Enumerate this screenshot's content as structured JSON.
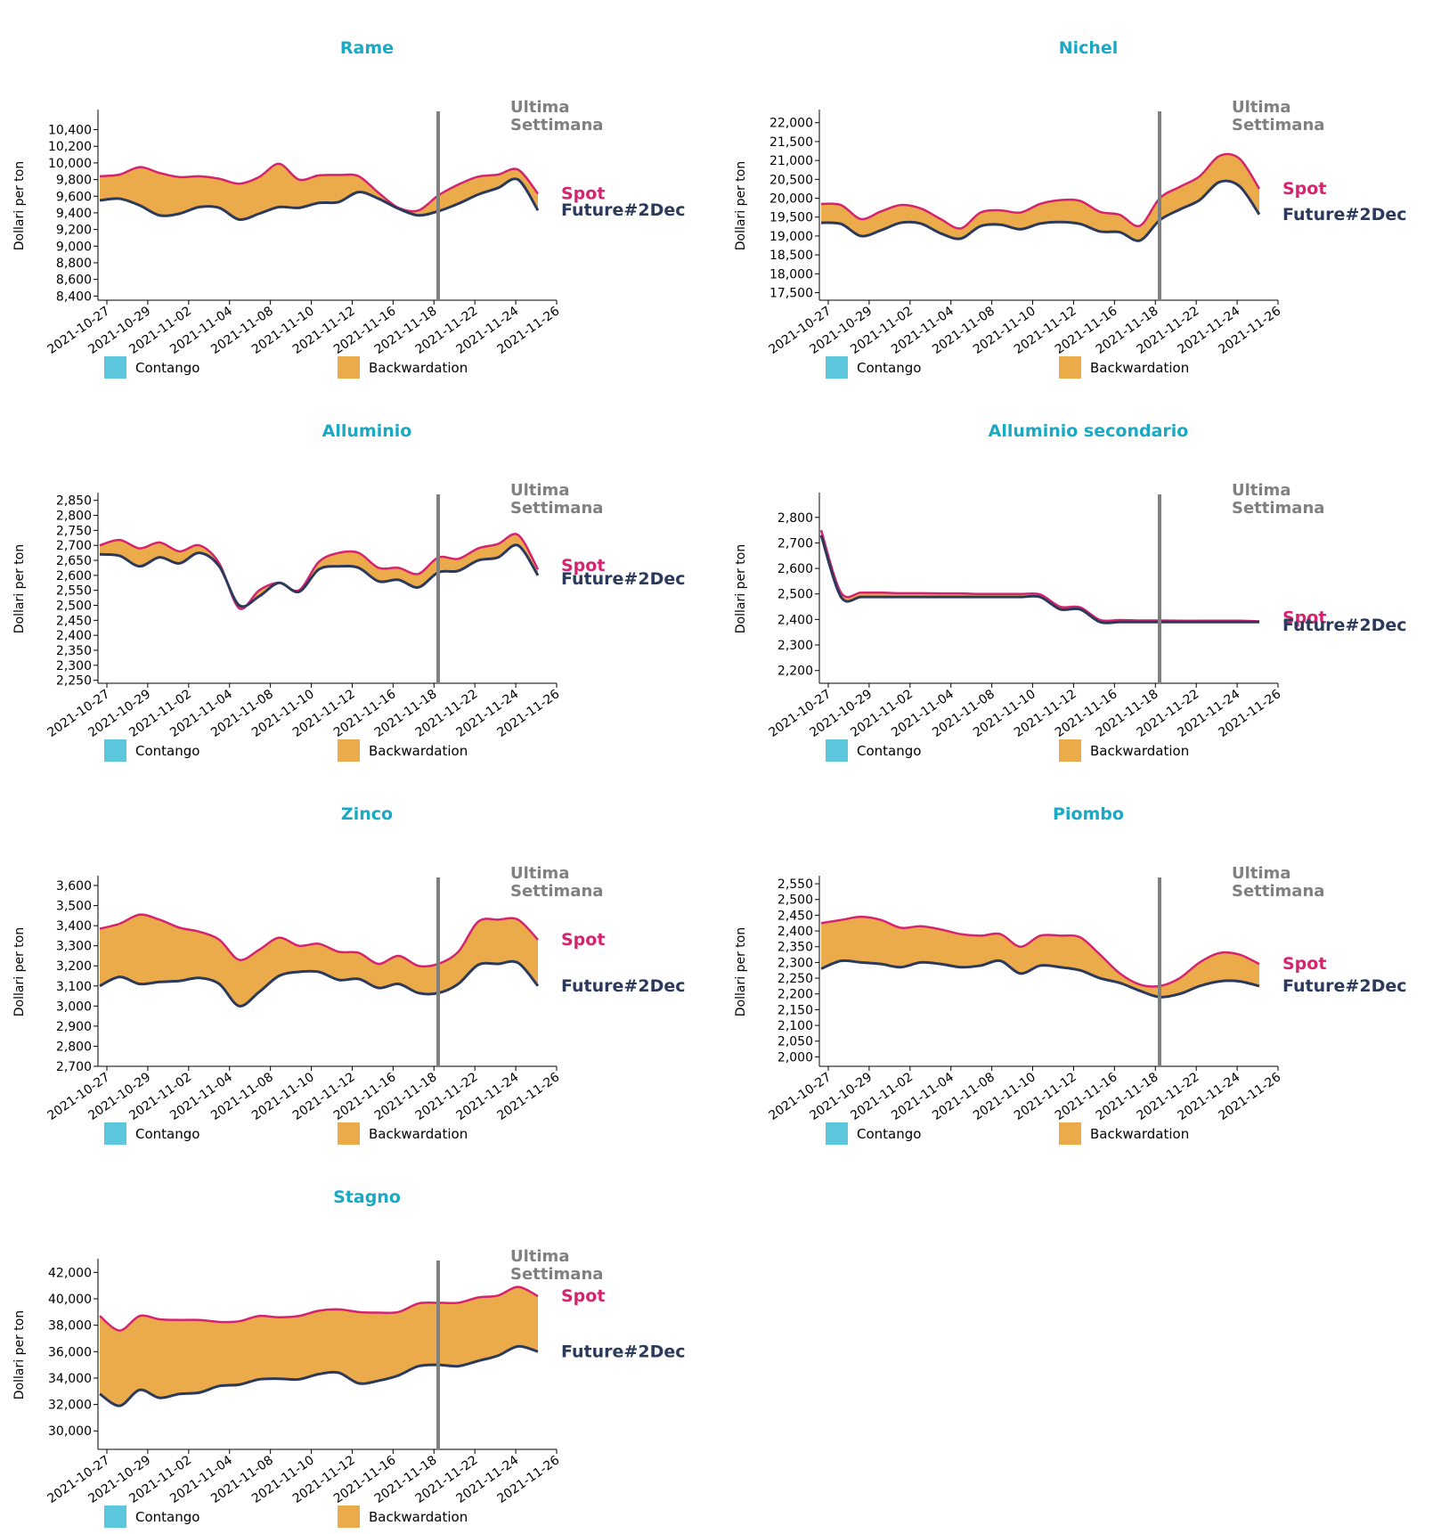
{
  "colors": {
    "title": "#1aa8c3",
    "spot": "#d6236f",
    "future": "#2b3a5c",
    "contango": "#5bc6dc",
    "backwardation": "#ecab4b",
    "marker": "#808080"
  },
  "common": {
    "ylabel": "Dollari per ton",
    "marker_label": [
      "Ultima",
      "Settimana"
    ],
    "spot_label": "Spot",
    "future_label": "Future#2Dec",
    "legend": [
      "Contango",
      "Backwardation"
    ],
    "xticks": [
      "2021-10-27",
      "2021-10-29",
      "2021-11-02",
      "2021-11-04",
      "2021-11-08",
      "2021-11-10",
      "2021-11-12",
      "2021-11-16",
      "2021-11-18",
      "2021-11-22",
      "2021-11-24",
      "2021-11-26"
    ]
  },
  "chart_data": [
    {
      "type": "area",
      "title": "Rame",
      "ylabel": "Dollari per ton",
      "ylim": [
        8350,
        10620
      ],
      "yticks": [
        8400,
        8600,
        8800,
        9000,
        9200,
        9400,
        9600,
        9800,
        10000,
        10200,
        10400
      ],
      "x_ticks_index": [
        0,
        2,
        4,
        6,
        8,
        10,
        12,
        14,
        16,
        18,
        20,
        22
      ],
      "marker_index": 16,
      "spot": [
        9840,
        9860,
        9950,
        9880,
        9830,
        9840,
        9810,
        9750,
        9830,
        9990,
        9800,
        9850,
        9855,
        9840,
        9640,
        9460,
        9430,
        9610,
        9740,
        9835,
        9860,
        9920,
        9630
      ],
      "future": [
        9550,
        9570,
        9490,
        9370,
        9390,
        9470,
        9460,
        9320,
        9390,
        9470,
        9460,
        9520,
        9530,
        9650,
        9570,
        9450,
        9370,
        9420,
        9510,
        9620,
        9700,
        9800,
        9430
      ]
    },
    {
      "type": "area",
      "title": "Nichel",
      "ylabel": "Dollari per ton",
      "ylim": [
        17300,
        22300
      ],
      "yticks": [
        17500,
        18000,
        18500,
        19000,
        19500,
        20000,
        20500,
        21000,
        21500,
        22000
      ],
      "x_ticks_index": [
        0,
        2,
        4,
        6,
        8,
        10,
        12,
        14,
        16,
        18,
        20,
        22
      ],
      "marker_index": 16,
      "spot": [
        19850,
        19820,
        19450,
        19650,
        19820,
        19730,
        19450,
        19200,
        19620,
        19680,
        19620,
        19850,
        19950,
        19930,
        19640,
        19560,
        19270,
        20000,
        20300,
        20580,
        21120,
        21050,
        20250
      ],
      "future": [
        19350,
        19320,
        19000,
        19150,
        19350,
        19330,
        19070,
        18930,
        19260,
        19300,
        19180,
        19330,
        19370,
        19320,
        19120,
        19100,
        18880,
        19420,
        19700,
        19950,
        20430,
        20320,
        19570
      ]
    },
    {
      "type": "area",
      "title": "Alluminio",
      "ylabel": "Dollari per ton",
      "ylim": [
        2240,
        2870
      ],
      "yticks": [
        2250,
        2300,
        2350,
        2400,
        2450,
        2500,
        2550,
        2600,
        2650,
        2700,
        2750,
        2800,
        2850
      ],
      "x_ticks_index": [
        0,
        2,
        4,
        6,
        8,
        10,
        12,
        14,
        16,
        18,
        20,
        22
      ],
      "marker_index": 16,
      "spot": [
        2700,
        2718,
        2690,
        2710,
        2680,
        2700,
        2640,
        2490,
        2550,
        2575,
        2550,
        2645,
        2675,
        2675,
        2625,
        2625,
        2605,
        2660,
        2655,
        2690,
        2705,
        2735,
        2620
      ],
      "future": [
        2670,
        2665,
        2630,
        2660,
        2640,
        2675,
        2630,
        2500,
        2530,
        2575,
        2545,
        2620,
        2630,
        2625,
        2580,
        2585,
        2560,
        2610,
        2615,
        2650,
        2660,
        2700,
        2600
      ]
    },
    {
      "type": "area",
      "title": "Alluminio secondario",
      "ylabel": "Dollari per ton",
      "ylim": [
        2150,
        2890
      ],
      "yticks": [
        2200,
        2300,
        2400,
        2500,
        2600,
        2700,
        2800
      ],
      "x_ticks_index": [
        0,
        2,
        4,
        6,
        8,
        10,
        12,
        14,
        16,
        18,
        20,
        22
      ],
      "marker_index": 16,
      "spot": [
        2750,
        2505,
        2505,
        2505,
        2503,
        2503,
        2502,
        2502,
        2500,
        2500,
        2500,
        2498,
        2450,
        2448,
        2398,
        2398,
        2396,
        2396,
        2395,
        2395,
        2395,
        2395,
        2393
      ],
      "future": [
        2730,
        2488,
        2488,
        2488,
        2488,
        2488,
        2488,
        2488,
        2488,
        2488,
        2488,
        2488,
        2440,
        2440,
        2390,
        2390,
        2390,
        2390,
        2390,
        2390,
        2390,
        2390,
        2390
      ]
    },
    {
      "type": "area",
      "title": "Zinco",
      "ylabel": "Dollari per ton",
      "ylim": [
        2700,
        3640
      ],
      "yticks": [
        2700,
        2800,
        2900,
        3000,
        3100,
        3200,
        3300,
        3400,
        3500,
        3600
      ],
      "x_ticks_index": [
        0,
        2,
        4,
        6,
        8,
        10,
        12,
        14,
        16,
        18,
        20,
        22
      ],
      "marker_index": 16,
      "spot": [
        3385,
        3410,
        3455,
        3430,
        3390,
        3370,
        3330,
        3230,
        3280,
        3340,
        3300,
        3310,
        3270,
        3265,
        3210,
        3250,
        3200,
        3210,
        3270,
        3420,
        3430,
        3430,
        3330
      ],
      "future": [
        3100,
        3145,
        3110,
        3120,
        3125,
        3140,
        3110,
        3000,
        3070,
        3150,
        3170,
        3170,
        3130,
        3135,
        3090,
        3110,
        3065,
        3065,
        3110,
        3205,
        3210,
        3215,
        3100
      ]
    },
    {
      "type": "area",
      "title": "Piombo",
      "ylabel": "Dollari per ton",
      "ylim": [
        1970,
        2570
      ],
      "yticks": [
        2000,
        2050,
        2100,
        2150,
        2200,
        2250,
        2300,
        2350,
        2400,
        2450,
        2500,
        2550
      ],
      "x_ticks_index": [
        0,
        2,
        4,
        6,
        8,
        10,
        12,
        14,
        16,
        18,
        20,
        22
      ],
      "marker_index": 16,
      "spot": [
        2425,
        2435,
        2445,
        2435,
        2410,
        2415,
        2405,
        2390,
        2385,
        2390,
        2350,
        2385,
        2385,
        2380,
        2325,
        2265,
        2230,
        2225,
        2250,
        2300,
        2330,
        2325,
        2295
      ],
      "future": [
        2280,
        2305,
        2300,
        2295,
        2285,
        2300,
        2295,
        2285,
        2290,
        2305,
        2265,
        2290,
        2285,
        2275,
        2250,
        2235,
        2210,
        2190,
        2200,
        2225,
        2240,
        2240,
        2225
      ]
    },
    {
      "type": "area",
      "title": "Stagno",
      "ylabel": "Dollari per ton",
      "ylim": [
        28600,
        42900
      ],
      "yticks": [
        30000,
        32000,
        34000,
        36000,
        38000,
        40000,
        42000
      ],
      "x_ticks_index": [
        0,
        2,
        4,
        6,
        8,
        10,
        12,
        14,
        16,
        18,
        20,
        22
      ],
      "marker_index": 16,
      "spot": [
        38700,
        37600,
        38700,
        38450,
        38400,
        38400,
        38250,
        38300,
        38700,
        38600,
        38700,
        39100,
        39200,
        39000,
        38950,
        39000,
        39650,
        39700,
        39700,
        40100,
        40250,
        40900,
        40200
      ],
      "future": [
        32800,
        31900,
        33100,
        32500,
        32800,
        32900,
        33400,
        33500,
        33900,
        33950,
        33900,
        34300,
        34400,
        33600,
        33800,
        34200,
        34900,
        35000,
        34900,
        35300,
        35700,
        36400,
        36000
      ]
    }
  ]
}
